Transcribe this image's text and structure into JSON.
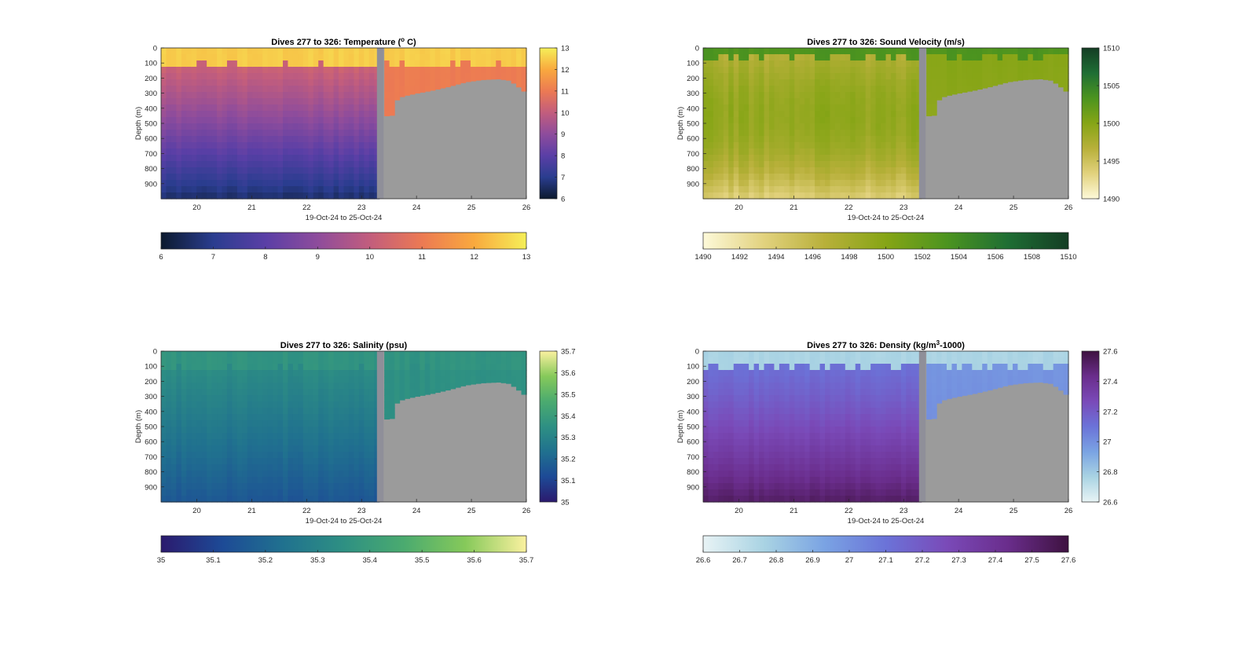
{
  "figure": {
    "xlabel": "19-Oct-24 to 25-Oct-24",
    "ylabel": "Depth (m)",
    "x_ticks": [
      "20",
      "21",
      "22",
      "23",
      "24",
      "25",
      "26"
    ],
    "y_ticks": [
      "0",
      "100",
      "200",
      "300",
      "400",
      "500",
      "600",
      "700",
      "800",
      "900"
    ]
  },
  "chart_data": [
    {
      "type": "heatmap",
      "variable": "temperature",
      "title_main": "Dives 277 to 326: Temperature (",
      "title_sup": "o",
      "title_tail": " C)",
      "xlim": [
        19.35,
        26
      ],
      "ylim": [
        1000,
        0
      ],
      "clim": [
        6,
        13
      ],
      "colorbar_ticks": [
        "13",
        "12",
        "11",
        "10",
        "9",
        "8",
        "7",
        "6"
      ],
      "h_colorbar_ticks": [
        "6",
        "7",
        "8",
        "9",
        "10",
        "11",
        "12",
        "13"
      ],
      "colors": [
        "#0c1a2e",
        "#2a3d8f",
        "#5a3fa6",
        "#8e4c9c",
        "#c25d7d",
        "#ec7a53",
        "#f9a93e",
        "#f5ef58"
      ],
      "no_data_color": "#9b9b9b"
    },
    {
      "type": "heatmap",
      "variable": "sound_velocity",
      "title_main": "Dives 277 to 326: Sound Velocity (m/s)",
      "title_sup": "",
      "title_tail": "",
      "xlim": [
        19.35,
        26
      ],
      "ylim": [
        1000,
        0
      ],
      "clim": [
        1490,
        1510
      ],
      "colorbar_ticks": [
        "1510",
        "1505",
        "1500",
        "1495",
        "1490"
      ],
      "h_colorbar_ticks": [
        "1490",
        "1492",
        "1494",
        "1496",
        "1498",
        "1500",
        "1502",
        "1504",
        "1506",
        "1508",
        "1510"
      ],
      "colors": [
        "#fdf9d9",
        "#e2d27e",
        "#b8b03a",
        "#86a516",
        "#4c941f",
        "#1f6e34",
        "#143d24"
      ],
      "no_data_color": "#9b9b9b"
    },
    {
      "type": "heatmap",
      "variable": "salinity",
      "title_main": "Dives 277 to 326: Salinity (psu)",
      "title_sup": "",
      "title_tail": "",
      "xlim": [
        19.35,
        26
      ],
      "ylim": [
        1000,
        0
      ],
      "clim": [
        35,
        35.7
      ],
      "colorbar_ticks": [
        "35.7",
        "35.6",
        "35.5",
        "35.4",
        "35.3",
        "35.2",
        "35.1",
        "35"
      ],
      "h_colorbar_ticks": [
        "35",
        "35.1",
        "35.2",
        "35.3",
        "35.4",
        "35.5",
        "35.6",
        "35.7"
      ],
      "colors": [
        "#2b1a6e",
        "#1d4a96",
        "#20718f",
        "#2e9083",
        "#4bab6f",
        "#86c95a",
        "#fbf1a0"
      ],
      "no_data_color": "#9b9b9b"
    },
    {
      "type": "heatmap",
      "variable": "density",
      "title_main": "Dives 277 to 326: Density (kg/m",
      "title_sup": "3",
      "title_tail": "-1000)",
      "xlim": [
        19.35,
        26
      ],
      "ylim": [
        1000,
        0
      ],
      "clim": [
        26.6,
        27.6
      ],
      "colorbar_ticks": [
        "27.6",
        "27.4",
        "27.2",
        "27",
        "26.8",
        "26.6"
      ],
      "h_colorbar_ticks": [
        "26.6",
        "26.7",
        "26.8",
        "26.9",
        "27",
        "27.1",
        "27.2",
        "27.3",
        "27.4",
        "27.5",
        "27.6"
      ],
      "colors": [
        "#e8f3f5",
        "#a9d3e3",
        "#7aa3e3",
        "#6b73d8",
        "#7a4ab8",
        "#6a2d8c",
        "#3e1240"
      ],
      "no_data_color": "#9b9b9b"
    }
  ]
}
